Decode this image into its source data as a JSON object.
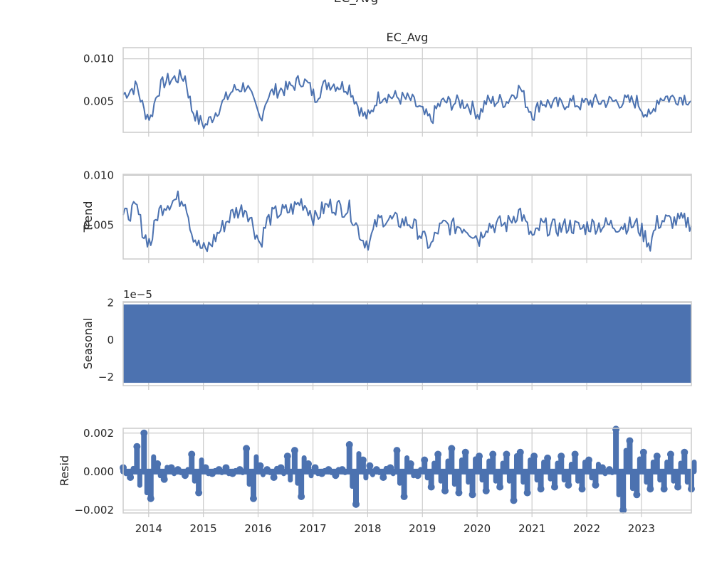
{
  "figure_title": "EC_Avg",
  "colors": {
    "line": "#4c72b0",
    "grid": "#cccccc",
    "spine": "#cccccc",
    "text": "#262626"
  },
  "x_tick_labels": [
    "2014",
    "2015",
    "2016",
    "2017",
    "2018",
    "2019",
    "2020",
    "2021",
    "2022",
    "2023"
  ],
  "panels": [
    {
      "id": "observed",
      "title": "EC_Avg",
      "ylabel": "",
      "yticks": [
        {
          "value": 0.005,
          "label": "0.005"
        },
        {
          "value": 0.01,
          "label": "0.010"
        }
      ],
      "ylim": [
        0.0014,
        0.0113
      ],
      "offset_text": ""
    },
    {
      "id": "trend",
      "title": "",
      "ylabel": "Trend",
      "yticks": [
        {
          "value": 0.005,
          "label": "0.005"
        },
        {
          "value": 0.01,
          "label": "0.010"
        }
      ],
      "ylim": [
        0.0016,
        0.0101
      ],
      "offset_text": ""
    },
    {
      "id": "seasonal",
      "title": "",
      "ylabel": "Seasonal",
      "yticks": [
        {
          "value": -2,
          "label": "−2"
        },
        {
          "value": 0,
          "label": "0"
        },
        {
          "value": 2,
          "label": "2"
        }
      ],
      "ylim": [
        -2.45,
        2.05
      ],
      "offset_text": "1e−5"
    },
    {
      "id": "resid",
      "title": "",
      "ylabel": "Resid",
      "yticks": [
        {
          "value": -0.002,
          "label": "−0.002"
        },
        {
          "value": 0.0,
          "label": "0.000"
        },
        {
          "value": 0.002,
          "label": "0.002"
        }
      ],
      "ylim": [
        -0.00215,
        0.00225
      ],
      "offset_text": ""
    }
  ],
  "chart_data": {
    "type": "line",
    "title": "EC_Avg",
    "xlabel": "",
    "x_tick_labels": [
      "2014",
      "2015",
      "2016",
      "2017",
      "2018",
      "2019",
      "2020",
      "2021",
      "2022",
      "2023"
    ],
    "xlim": [
      "2013-07-15",
      "2023-11-30"
    ],
    "x": [
      "2013-07-15",
      "2013-09-01",
      "2013-10-15",
      "2013-12-01",
      "2014-01-15",
      "2014-03-01",
      "2014-04-15",
      "2014-06-01",
      "2014-07-15",
      "2014-09-01",
      "2014-10-15",
      "2014-12-01",
      "2015-01-15",
      "2015-03-01",
      "2015-04-15",
      "2015-06-01",
      "2015-07-15",
      "2015-09-01",
      "2015-10-15",
      "2015-12-01",
      "2016-01-15",
      "2016-03-01",
      "2016-04-15",
      "2016-06-01",
      "2016-07-15",
      "2016-09-01",
      "2016-10-15",
      "2016-12-01",
      "2017-01-15",
      "2017-03-01",
      "2017-04-15",
      "2017-06-01",
      "2017-07-15",
      "2017-09-01",
      "2017-10-15",
      "2017-12-01",
      "2018-01-15",
      "2018-03-01",
      "2018-04-15",
      "2018-06-01",
      "2018-07-15",
      "2018-09-01",
      "2018-10-15",
      "2018-12-01",
      "2019-01-15",
      "2019-03-01",
      "2019-04-15",
      "2019-06-01",
      "2019-07-15",
      "2019-09-01",
      "2019-10-15",
      "2019-12-01",
      "2020-01-15",
      "2020-03-01",
      "2020-04-15",
      "2020-06-01",
      "2020-07-15",
      "2020-09-01",
      "2020-10-15",
      "2020-12-01",
      "2021-01-15",
      "2021-03-01",
      "2021-04-15",
      "2021-06-01",
      "2021-07-15",
      "2021-09-01",
      "2021-10-15",
      "2021-12-01",
      "2022-01-15",
      "2022-03-01",
      "2022-04-15",
      "2022-06-01",
      "2022-07-15",
      "2022-09-01",
      "2022-10-15",
      "2022-12-01",
      "2023-01-15",
      "2023-03-01",
      "2023-04-15",
      "2023-06-01",
      "2023-07-15",
      "2023-09-01",
      "2023-10-15",
      "2023-11-30"
    ],
    "series": [
      {
        "name": "EC_Avg",
        "values": [
          0.0058,
          0.0064,
          0.0068,
          0.0039,
          0.0031,
          0.0062,
          0.0073,
          0.0076,
          0.0078,
          0.0079,
          0.0042,
          0.0028,
          0.0022,
          0.0032,
          0.0043,
          0.0053,
          0.0063,
          0.0066,
          0.0069,
          0.0048,
          0.003,
          0.0055,
          0.0062,
          0.0064,
          0.0065,
          0.007,
          0.0076,
          0.0069,
          0.0055,
          0.0066,
          0.0072,
          0.007,
          0.0068,
          0.0067,
          0.005,
          0.0034,
          0.0032,
          0.0053,
          0.0058,
          0.0056,
          0.0055,
          0.0053,
          0.0052,
          0.0044,
          0.0034,
          0.0028,
          0.0045,
          0.005,
          0.0048,
          0.0049,
          0.0048,
          0.0042,
          0.0035,
          0.005,
          0.005,
          0.0051,
          0.005,
          0.006,
          0.0066,
          0.0045,
          0.0035,
          0.005,
          0.0048,
          0.0047,
          0.0046,
          0.005,
          0.0048,
          0.0046,
          0.005,
          0.005,
          0.005,
          0.005,
          0.005,
          0.005,
          0.005,
          0.005,
          0.004,
          0.003,
          0.0052,
          0.0056,
          0.0054,
          0.0055,
          0.0055,
          0.0052
        ]
      },
      {
        "name": "Trend",
        "values": [
          0.0057,
          0.0063,
          0.0066,
          0.004,
          0.0032,
          0.0061,
          0.0071,
          0.0074,
          0.0076,
          0.0077,
          0.0044,
          0.0029,
          0.0024,
          0.0033,
          0.0043,
          0.0053,
          0.0062,
          0.0065,
          0.0067,
          0.0049,
          0.0031,
          0.0054,
          0.0061,
          0.0063,
          0.0064,
          0.0068,
          0.0074,
          0.0067,
          0.0056,
          0.0065,
          0.007,
          0.0069,
          0.0067,
          0.0066,
          0.0051,
          0.0035,
          0.0033,
          0.0052,
          0.0057,
          0.0055,
          0.0054,
          0.0053,
          0.0052,
          0.0045,
          0.0035,
          0.0029,
          0.0045,
          0.005,
          0.0048,
          0.0049,
          0.0048,
          0.0043,
          0.0036,
          0.005,
          0.005,
          0.0051,
          0.005,
          0.0059,
          0.0064,
          0.0046,
          0.0036,
          0.005,
          0.0048,
          0.0047,
          0.0047,
          0.005,
          0.0048,
          0.0046,
          0.005,
          0.005,
          0.005,
          0.005,
          0.005,
          0.005,
          0.005,
          0.005,
          0.0041,
          0.0031,
          0.0052,
          0.0055,
          0.0054,
          0.0054,
          0.0054,
          0.0052
        ]
      },
      {
        "name": "Seasonal",
        "scale": "1e-5",
        "min": -2.3,
        "max": 1.9
      },
      {
        "name": "Resid",
        "values": [
          0.0002,
          -0.0003,
          0.0013,
          0.002,
          -0.0014,
          0.0004,
          -0.0004,
          0.0002,
          0.0001,
          -0.0002,
          0.0009,
          -0.0011,
          0.0002,
          -0.0001,
          0.0001,
          0.0002,
          -0.0001,
          0.0001,
          0.0012,
          -0.0014,
          0.0003,
          0.0001,
          -0.0003,
          0.0002,
          0.0008,
          0.0011,
          -0.0013,
          0.0004,
          0.0002,
          -0.0001,
          0.0001,
          -0.0002,
          0.0001,
          0.0014,
          -0.0017,
          0.0006,
          0.0003,
          0.0001,
          -0.0003,
          0.0002,
          0.0011,
          -0.0013,
          0.0004,
          -0.0002,
          0.0006,
          -0.0008,
          0.0009,
          -0.001,
          0.0012,
          -0.0011,
          0.001,
          -0.0012,
          0.0008,
          -0.001,
          0.0009,
          -0.0008,
          0.0009,
          -0.0015,
          0.001,
          -0.0011,
          0.0008,
          -0.0009,
          0.0007,
          -0.0008,
          0.0008,
          -0.0007,
          0.0009,
          -0.0009,
          0.0006,
          -0.0007,
          0.0002,
          0.0001,
          0.0022,
          -0.002,
          0.0016,
          -0.0012,
          0.001,
          -0.0009,
          0.0008,
          -0.0009,
          0.0009,
          -0.0008,
          0.001,
          -0.0009
        ]
      }
    ]
  }
}
